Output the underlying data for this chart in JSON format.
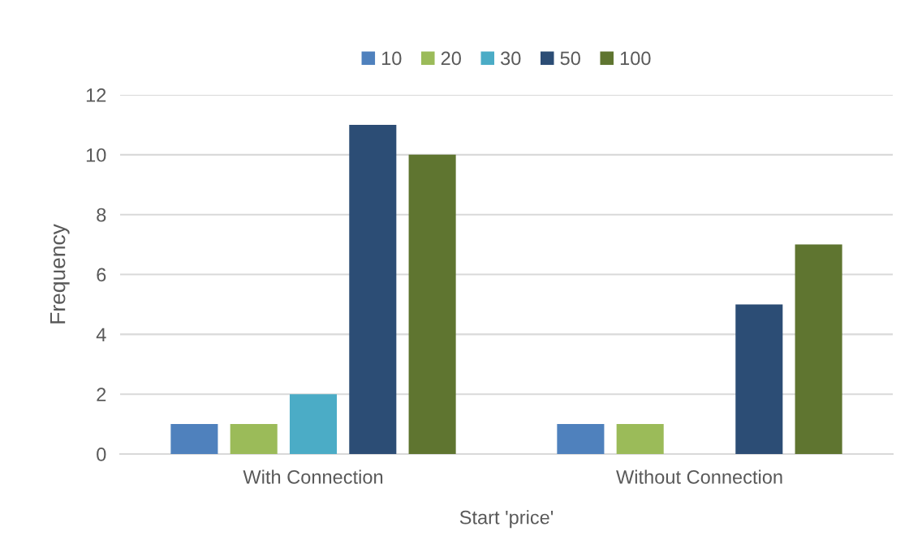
{
  "chart_data": {
    "type": "bar",
    "xlabel": "Start 'price'",
    "ylabel": "Frequency",
    "categories": [
      "With Connection",
      "Without Connection"
    ],
    "series": [
      {
        "name": "10",
        "color": "#4f81bd",
        "values": [
          1,
          1
        ]
      },
      {
        "name": "20",
        "color": "#9bbb59",
        "values": [
          1,
          1
        ]
      },
      {
        "name": "30",
        "color": "#4bacc6",
        "values": [
          2,
          null
        ]
      },
      {
        "name": "50",
        "color": "#2c4d75",
        "values": [
          11,
          5
        ]
      },
      {
        "name": "100",
        "color": "#5f7530",
        "values": [
          10,
          7
        ]
      }
    ],
    "ylim": [
      0,
      12
    ],
    "yticks": [
      0,
      2,
      4,
      6,
      8,
      10,
      12
    ],
    "grid": "y",
    "legend": "top"
  }
}
